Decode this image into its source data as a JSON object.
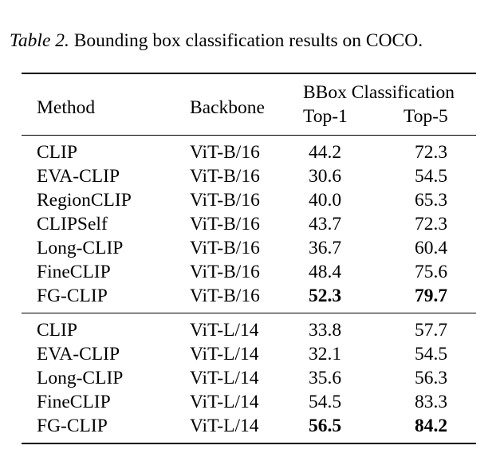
{
  "caption": {
    "label": "Table 2.",
    "text": " Bounding box classification results on COCO."
  },
  "table": {
    "headers": {
      "method": "Method",
      "backbone": "Backbone",
      "group": "BBox Classification",
      "top1": "Top-1",
      "top5": "Top-5"
    },
    "groups": [
      {
        "rows": [
          {
            "method": "CLIP",
            "backbone": "ViT-B/16",
            "top1": "44.2",
            "top5": "72.3",
            "bold": false
          },
          {
            "method": "EVA-CLIP",
            "backbone": "ViT-B/16",
            "top1": "30.6",
            "top5": "54.5",
            "bold": false
          },
          {
            "method": "RegionCLIP",
            "backbone": "ViT-B/16",
            "top1": "40.0",
            "top5": "65.3",
            "bold": false
          },
          {
            "method": "CLIPSelf",
            "backbone": "ViT-B/16",
            "top1": "43.7",
            "top5": "72.3",
            "bold": false
          },
          {
            "method": "Long-CLIP",
            "backbone": "ViT-B/16",
            "top1": "36.7",
            "top5": "60.4",
            "bold": false
          },
          {
            "method": "FineCLIP",
            "backbone": "ViT-B/16",
            "top1": "48.4",
            "top5": "75.6",
            "bold": false
          },
          {
            "method": "FG-CLIP",
            "backbone": "ViT-B/16",
            "top1": "52.3",
            "top5": "79.7",
            "bold": true
          }
        ]
      },
      {
        "rows": [
          {
            "method": "CLIP",
            "backbone": "ViT-L/14",
            "top1": "33.8",
            "top5": "57.7",
            "bold": false
          },
          {
            "method": "EVA-CLIP",
            "backbone": "ViT-L/14",
            "top1": "32.1",
            "top5": "54.5",
            "bold": false
          },
          {
            "method": "Long-CLIP",
            "backbone": "ViT-L/14",
            "top1": "35.6",
            "top5": "56.3",
            "bold": false
          },
          {
            "method": "FineCLIP",
            "backbone": "ViT-L/14",
            "top1": "54.5",
            "top5": "83.3",
            "bold": false
          },
          {
            "method": "FG-CLIP",
            "backbone": "ViT-L/14",
            "top1": "56.5",
            "top5": "84.2",
            "bold": true
          }
        ]
      }
    ]
  }
}
